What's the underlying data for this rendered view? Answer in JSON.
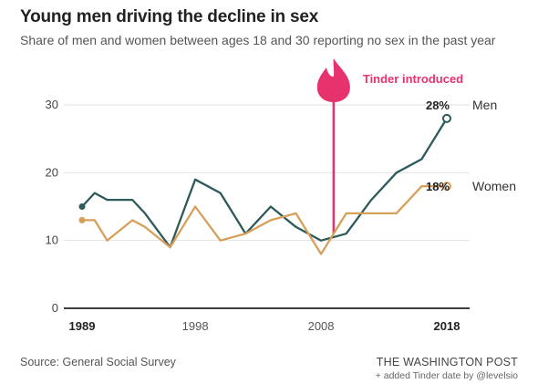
{
  "title": "Young men driving the decline in sex",
  "subtitle": "Share of men and women between ages 18 and 30 reporting no sex in the past year",
  "source": "Source: General Social Survey",
  "publisher": "THE WASHINGTON POST",
  "credit": "+ added Tinder date by @levelsio",
  "colors": {
    "men": "#2e5a5a",
    "women": "#d7a05a",
    "tinder": "#e6336e",
    "grid": "#e2e2e2",
    "axis": "#222222"
  },
  "icons": {
    "tinder": "tinder-flame-icon"
  },
  "chart_data": {
    "type": "line",
    "title": "Young men driving the decline in sex",
    "xlabel": "",
    "ylabel": "",
    "xlim": [
      1989,
      2018
    ],
    "ylim": [
      0,
      30
    ],
    "x_ticks": [
      "1989",
      "1998",
      "2008",
      "2018"
    ],
    "y_ticks": [
      "0",
      "10",
      "20",
      "30"
    ],
    "grid": true,
    "legend": "direct labels at line ends",
    "series": [
      {
        "name": "Men",
        "end_label": "28%",
        "x": [
          1989,
          1990,
          1991,
          1993,
          1994,
          1996,
          1998,
          2000,
          2002,
          2004,
          2006,
          2008,
          2010,
          2012,
          2014,
          2016,
          2018
        ],
        "y": [
          15,
          17,
          16,
          16,
          14,
          9,
          19,
          17,
          11,
          15,
          12,
          10,
          11,
          16,
          20,
          22,
          28
        ]
      },
      {
        "name": "Women",
        "end_label": "18%",
        "x": [
          1989,
          1990,
          1991,
          1993,
          1994,
          1996,
          1998,
          2000,
          2002,
          2004,
          2006,
          2008,
          2010,
          2012,
          2014,
          2016,
          2018
        ],
        "y": [
          13,
          13,
          10,
          13,
          12,
          9,
          15,
          10,
          11,
          13,
          14,
          8,
          14,
          14,
          14,
          18,
          18
        ]
      }
    ],
    "annotations": [
      {
        "text": "Tinder introduced",
        "x": 2009
      }
    ]
  }
}
